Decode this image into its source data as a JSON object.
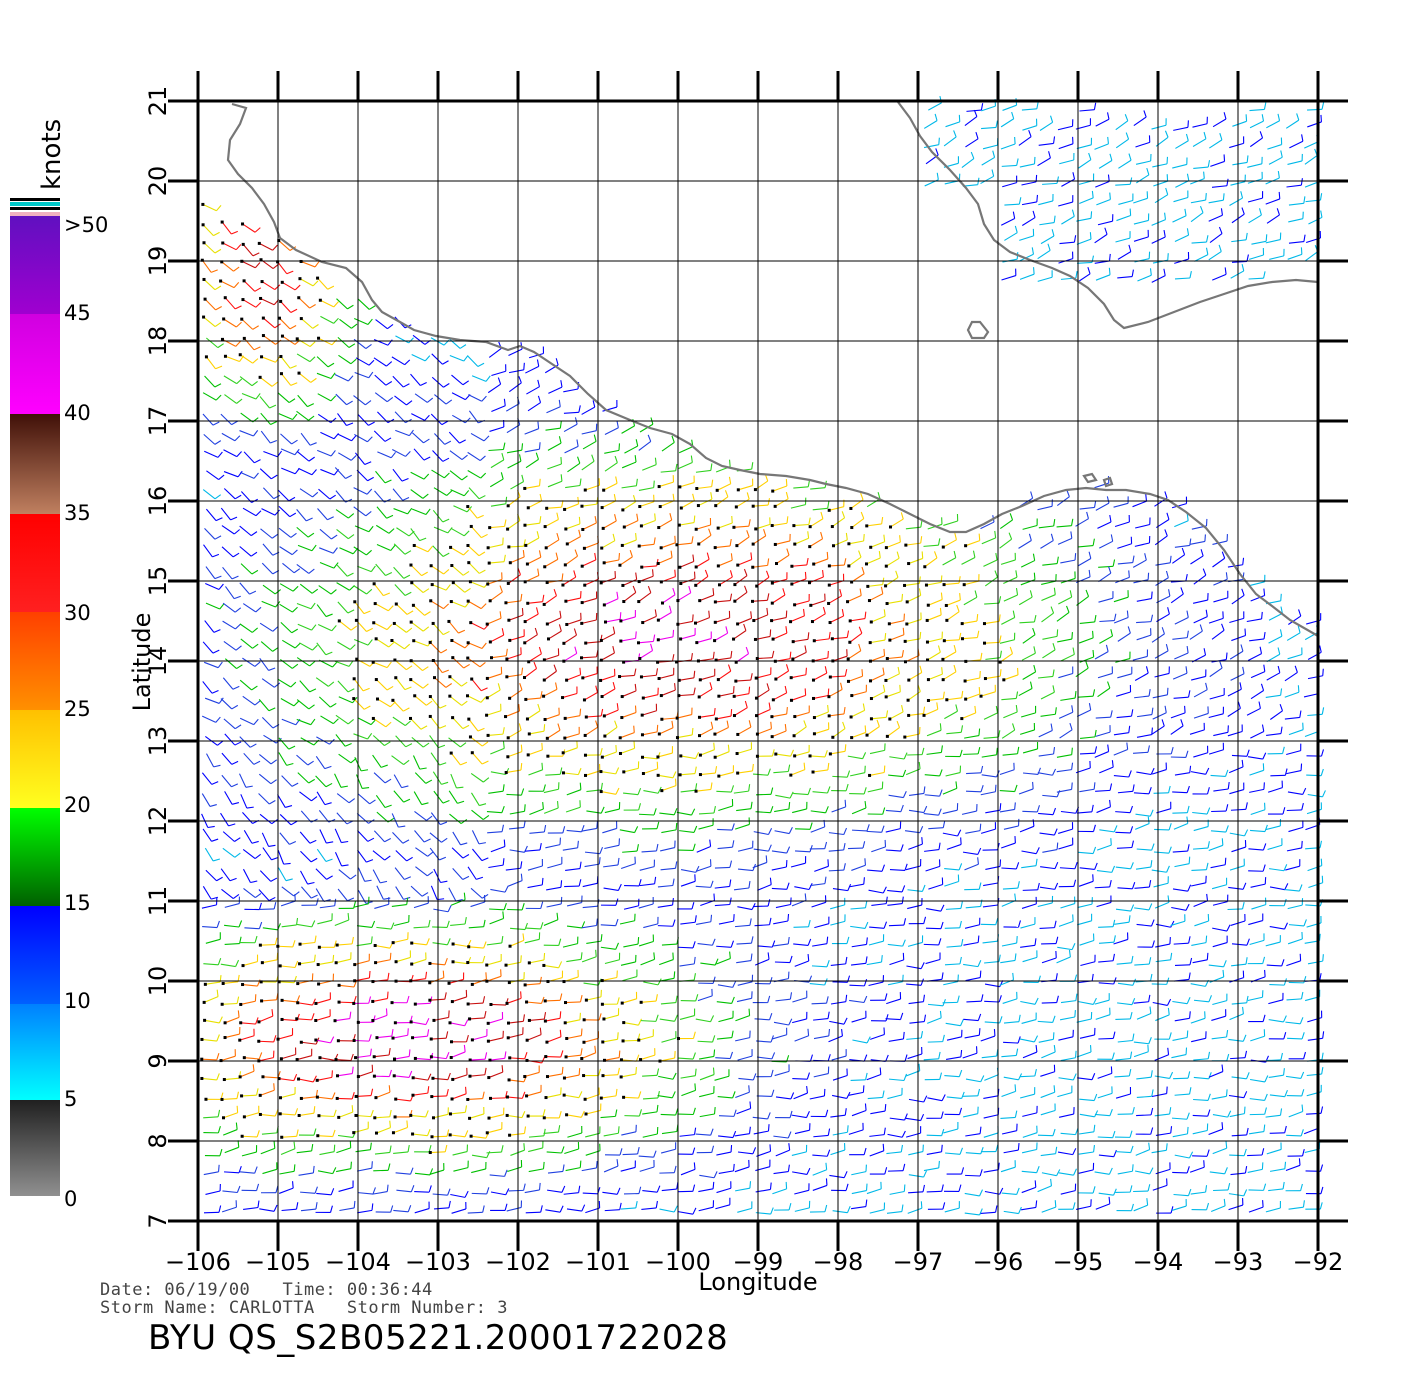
{
  "map": {
    "xlabel": "Longitude",
    "ylabel": "Latitude",
    "lon_range": [
      -106,
      -92
    ],
    "lat_range": [
      7,
      21
    ],
    "lon_ticks": [
      "−106",
      "−105",
      "−104",
      "−103",
      "−102",
      "−101",
      "−100",
      "−99",
      "−98",
      "−97",
      "−96",
      "−95",
      "−94",
      "−93",
      "−92"
    ],
    "lat_ticks": [
      "7",
      "8",
      "9",
      "10",
      "11",
      "12",
      "13",
      "14",
      "15",
      "16",
      "17",
      "18",
      "19",
      "20",
      "21"
    ],
    "grid": true,
    "coastline_color": "#777777"
  },
  "colorbar": {
    "unit": "knots",
    "labels": [
      "0",
      "5",
      "10",
      "15",
      "20",
      "25",
      "30",
      "35",
      "40",
      "45",
      ">50"
    ],
    "colors": {
      "0-5": "#808080",
      "5-10": "#00e0ff",
      "10-15": "#0000ff",
      "15-20": "#00c000",
      "20-25": "#ffd000",
      "25-30": "#ff7000",
      "30-35": "#ff1010",
      "35-40": "#6a2a10",
      "40-45": "#ee00ee",
      "45-50": "#6010c0"
    }
  },
  "info": {
    "date_line": "Date: 06/19/00   Time: 00:36:44",
    "storm_line": "Storm Name: CARLOTTA   Storm Number: 3",
    "product_id": "BYU QS_S2B05221.20001722028"
  }
}
